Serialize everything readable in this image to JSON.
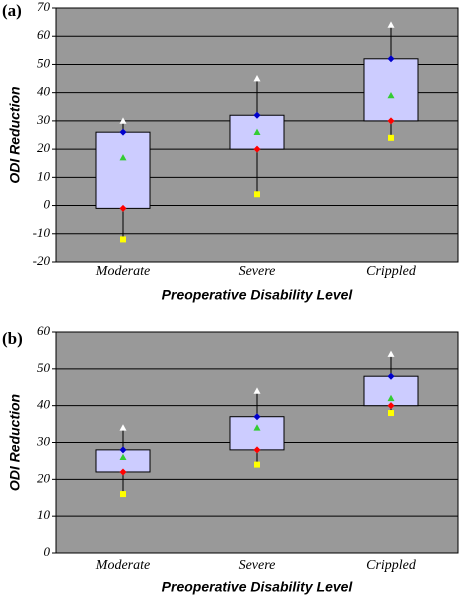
{
  "chart_data": [
    {
      "type": "box",
      "panel": "(a)",
      "ylabel": "ODI Reduction",
      "xlabel": "Preoperative Disability Level",
      "categories": [
        "Moderate",
        "Severe",
        "Crippled"
      ],
      "ylim": [
        -20,
        70
      ],
      "yticks": [
        -20,
        -10,
        0,
        10,
        20,
        30,
        40,
        50,
        60,
        70
      ],
      "grid": true,
      "background": "#999999",
      "box_color": "#ccccff",
      "series": [
        {
          "role": "max",
          "marker": "triangle",
          "color": "#ffffff",
          "values": [
            30,
            45,
            64
          ]
        },
        {
          "role": "q3",
          "marker": "diamond",
          "color": "#0000cc",
          "values": [
            26,
            32,
            52
          ]
        },
        {
          "role": "mean",
          "marker": "triangle",
          "color": "#33cc33",
          "values": [
            17,
            26,
            39
          ]
        },
        {
          "role": "q1",
          "marker": "diamond",
          "color": "#ff0000",
          "values": [
            -1,
            20,
            30
          ]
        },
        {
          "role": "min",
          "marker": "square",
          "color": "#ffff00",
          "values": [
            -12,
            4,
            24
          ]
        }
      ]
    },
    {
      "type": "box",
      "panel": "(b)",
      "ylabel": "ODI Reduction",
      "xlabel": "Preoperative Disability Level",
      "categories": [
        "Moderate",
        "Severe",
        "Crippled"
      ],
      "ylim": [
        0,
        60
      ],
      "yticks": [
        0,
        10,
        20,
        30,
        40,
        50,
        60
      ],
      "grid": true,
      "background": "#999999",
      "box_color": "#ccccff",
      "series": [
        {
          "role": "max",
          "marker": "triangle",
          "color": "#ffffff",
          "values": [
            34,
            44,
            54
          ]
        },
        {
          "role": "q3",
          "marker": "diamond",
          "color": "#0000cc",
          "values": [
            28,
            37,
            48
          ]
        },
        {
          "role": "mean",
          "marker": "triangle",
          "color": "#33cc33",
          "values": [
            26,
            34,
            42
          ]
        },
        {
          "role": "q1",
          "marker": "diamond",
          "color": "#ff0000",
          "values": [
            22,
            28,
            40
          ]
        },
        {
          "role": "min",
          "marker": "square",
          "color": "#ffff00",
          "values": [
            16,
            24,
            38
          ]
        }
      ]
    }
  ]
}
